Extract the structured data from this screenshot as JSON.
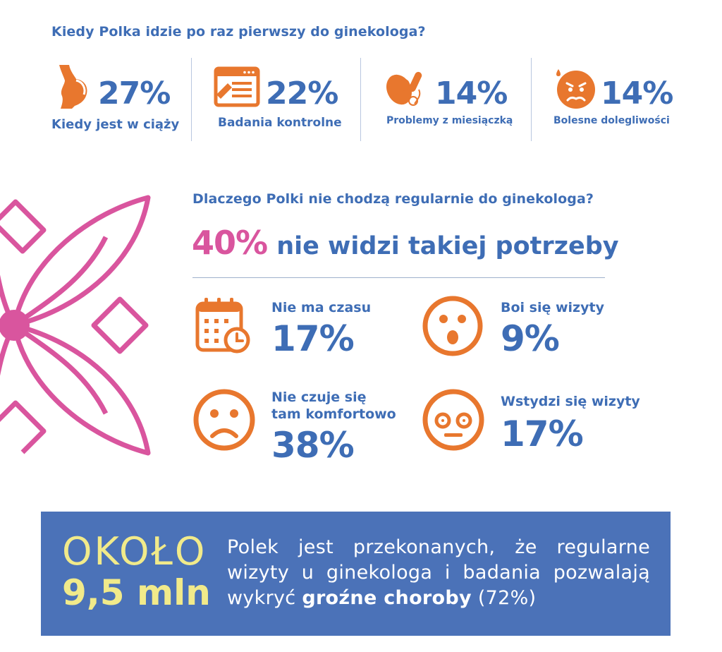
{
  "first_visit": {
    "question": "Kiedy Polka idzie po raz pierwszy do ginekologa?",
    "items": [
      {
        "icon": "pregnant-woman-icon",
        "percent": "27%",
        "label": "Kiedy jest w ciąży"
      },
      {
        "icon": "medical-form-icon",
        "percent": "22%",
        "label": "Badania kontrolne"
      },
      {
        "icon": "menstrual-products-icon",
        "percent": "14%",
        "label": "Problemy z miesiączką"
      },
      {
        "icon": "pain-face-icon",
        "percent": "14%",
        "label": "Bolesne dolegliwości"
      }
    ]
  },
  "reasons": {
    "question": "Dlaczego Polki nie chodzą regularnie do ginekologa?",
    "headline_percent": "40%",
    "headline_text": "nie widzi takiej potrzeby",
    "items": [
      {
        "icon": "calendar-clock-icon",
        "label_line1": "Nie ma czasu",
        "label_line2": "",
        "percent": "17%"
      },
      {
        "icon": "surprised-face-icon",
        "label_line1": "Boi się wizyty",
        "label_line2": "",
        "percent": "9%"
      },
      {
        "icon": "sad-face-icon",
        "label_line1": "Nie czuje się",
        "label_line2": "tam komfortowo",
        "percent": "38%"
      },
      {
        "icon": "embarrassed-face-icon",
        "label_line1": "Wstydzi się wizyty",
        "label_line2": "",
        "percent": "17%"
      }
    ]
  },
  "banner": {
    "prefix": "OKOŁO",
    "amount": "9,5 mln",
    "text_part1": "Polek jest przekonanych, że regularne wizyty u ginekologa i badania pozwalają wykryć",
    "text_bold": "groźne choroby",
    "text_part2": "(72%)"
  },
  "colors": {
    "blue": "#3e6db5",
    "orange": "#e8772e",
    "pink": "#d9559e",
    "banner_bg": "#4b72b8",
    "banner_accent": "#f1ea8a"
  }
}
